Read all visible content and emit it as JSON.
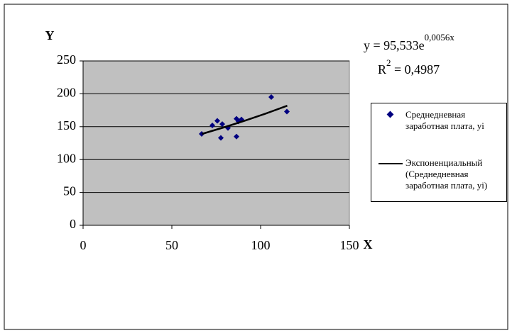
{
  "chart_data": {
    "type": "scatter",
    "x_label": "X",
    "y_label": "Y",
    "series": [
      {
        "name": "Среднедневная заработная плата, yi",
        "color": "#000080",
        "kind": "marker",
        "x": [
          66.8,
          72.8,
          75.6,
          77.6,
          78.4,
          81.6,
          86.4,
          86.4,
          87.6,
          89.2,
          106,
          114.8
        ],
        "values": [
          139,
          152,
          159,
          133,
          154,
          148,
          162,
          135,
          158,
          161,
          195,
          173
        ]
      },
      {
        "name": "Экспоненциальный (Среднедневная заработная плата, yi)",
        "color": "#000000",
        "kind": "line",
        "x": [
          67,
          79,
          91,
          103,
          115
        ],
        "values": [
          139.0,
          148.7,
          159.0,
          170.1,
          181.9
        ]
      }
    ],
    "equation": {
      "text": "y = 95,533e",
      "exponent": "0,0056x"
    },
    "r_squared": {
      "text": "R",
      "superscript": "2",
      "rest": " = 0,4987"
    },
    "xlim": [
      0,
      150
    ],
    "xticks": [
      0,
      50,
      100,
      150
    ],
    "ylim": [
      0,
      250
    ],
    "yticks": [
      0,
      50,
      100,
      150,
      200,
      250
    ],
    "grid": true,
    "plot_background": "#c0c0c0",
    "legend": "right"
  }
}
